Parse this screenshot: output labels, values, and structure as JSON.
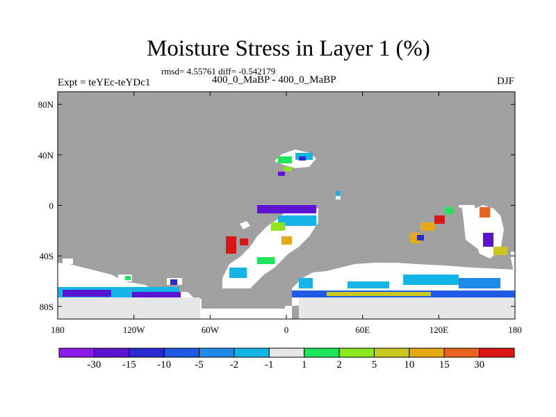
{
  "header": {
    "title": "Moisture Stress in Layer 1 (%)",
    "stats": "rmsd= 4.55761 diff= -0.542179",
    "experiment": "Expt = teYEc-teYDc1",
    "period": "400_0_MaBP - 400_0_MaBP",
    "season": "DJF"
  },
  "map": {
    "projection": "cylindrical equidistant",
    "lon_range": [
      -180,
      180
    ],
    "lat_range": [
      -90,
      90
    ],
    "land_color": "#a0a0a0",
    "lat_ticks": [
      {
        "value": 80,
        "label": "80N"
      },
      {
        "value": 40,
        "label": "40N"
      },
      {
        "value": 0,
        "label": "0"
      },
      {
        "value": -40,
        "label": "40S"
      },
      {
        "value": -80,
        "label": "80S"
      }
    ],
    "lon_ticks": [
      {
        "value": -180,
        "label": "180"
      },
      {
        "value": -120,
        "label": "120W"
      },
      {
        "value": -60,
        "label": "60W"
      },
      {
        "value": 0,
        "label": "0"
      },
      {
        "value": 60,
        "label": "60E"
      },
      {
        "value": 120,
        "label": "120E"
      },
      {
        "value": 180,
        "label": "180"
      }
    ]
  },
  "colorbar": {
    "colors": [
      "#8c1ae8",
      "#5a14d2",
      "#2a2ad2",
      "#1e5ae6",
      "#1e8ce6",
      "#14b4e6",
      "#e6e6e6",
      "#1ee65a",
      "#8ce61e",
      "#c8c81e",
      "#e6aa14",
      "#e6641e",
      "#dc1414"
    ],
    "labels": [
      "-30",
      "-15",
      "-10",
      "-5",
      "-2",
      "-1",
      "1",
      "2",
      "5",
      "10",
      "15",
      "30"
    ]
  }
}
